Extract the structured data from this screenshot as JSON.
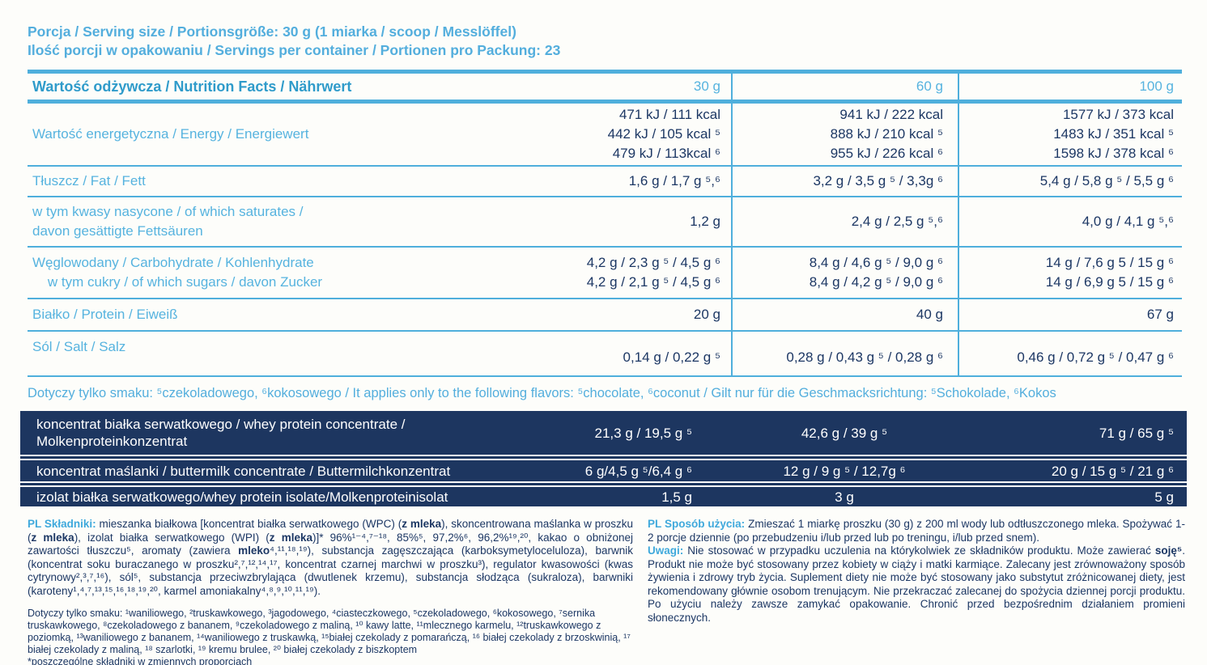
{
  "colors": {
    "accent_cyan": "#4fafdc",
    "title_blue": "#2f9bca",
    "navy_text": "#1c3764",
    "dark_band_bg": "#1d3660",
    "band_text": "#ffffff"
  },
  "serving": {
    "line1": "Porcja / Serving size / Portionsgröße: 30 g (1 miarka / scoop / Messlöffel)",
    "line2": "Ilość porcji w opakowaniu / Servings per container / Portionen pro Packung: 23"
  },
  "table": {
    "title": "Wartość odżywcza / Nutrition Facts / Nährwert",
    "columns": [
      "30 g",
      "60 g",
      "100 g"
    ],
    "rows": [
      {
        "label": "Wartość energetyczna / Energy / Energiewert",
        "v30": "471 kJ / 111 kcal\n442 kJ / 105 kcal ⁵\n479 kJ / 113kcal ⁶",
        "v60": "941 kJ / 222 kcal\n888 kJ / 210 kcal ⁵\n955 kJ / 226 kcal ⁶",
        "v100": "1577 kJ / 373 kcal\n1483 kJ / 351 kcal ⁵\n1598 kJ / 378 kcal ⁶"
      },
      {
        "label": "Tłuszcz / Fat / Fett",
        "v30": "1,6 g / 1,7 g ⁵,⁶",
        "v60": "3,2 g / 3,5 g ⁵ / 3,3g ⁶",
        "v100": "5,4 g / 5,8 g ⁵ / 5,5 g ⁶"
      },
      {
        "label": "w tym kwasy nasycone / of which saturates /\ndavon gesättigte Fettsäuren",
        "v30": "1,2 g",
        "v60": "2,4 g / 2,5 g ⁵,⁶",
        "v100": "4,0 g / 4,1 g ⁵,⁶"
      },
      {
        "label": "Węglowodany / Carbohydrate / Kohlenhydrate\n    w tym cukry / of which sugars / davon Zucker",
        "v30": "4,2 g / 2,3 g ⁵ / 4,5 g ⁶\n4,2 g / 2,1 g ⁵ / 4,5 g ⁶",
        "v60": "8,4 g / 4,6 g ⁵ / 9,0 g ⁶\n8,4 g / 4,2 g ⁵ / 9,0 g ⁶",
        "v100": "14 g / 7,6 g 5 / 15 g ⁶\n14 g / 6,9 g 5 / 15 g ⁶"
      },
      {
        "label": "Białko / Protein / Eiweiß",
        "v30": "20 g",
        "v60": "40 g",
        "v100": "67 g"
      },
      {
        "label": "Sól / Salt / Salz",
        "v30": "0,14 g / 0,22 g ⁵",
        "v60": "0,28 g / 0,43 g ⁵ / 0,28 g ⁶",
        "v100": "0,46 g / 0,72 g ⁵ / 0,47 g ⁶"
      }
    ]
  },
  "flavors_note": "Dotyczy tylko smaku: ⁵czekoladowego, ⁶kokosowego / It applies only to the following flavors: ⁵chocolate, ⁶coconut  / Gilt nur für die Geschmacksrichtung: ⁵Schokolade, ⁶Kokos",
  "protein_band": {
    "rows": [
      {
        "label": "koncentrat białka serwatkowego / whey protein concentrate /\nMolkenproteinkonzentrat",
        "v30": "21,3 g / 19,5 g ⁵",
        "v60": "42,6 g / 39 g ⁵",
        "v100": "71 g / 65 g ⁵"
      },
      {
        "label": "koncentrat maślanki / buttermilk concentrate / Buttermilchkonzentrat",
        "v30": "6 g/4,5 g ⁵/6,4 g ⁶",
        "v60": "12 g / 9 g ⁵ / 12,7g ⁶",
        "v100": "20 g / 15 g ⁵ / 21 g ⁶"
      },
      {
        "label": "izolat białka serwatkowego/whey protein isolate/Molkenproteinisolat",
        "v30": "1,5 g",
        "v60": "3 g",
        "v100": "5 g"
      }
    ]
  },
  "footer": {
    "ingredients_label": "PL Składniki:",
    "ingredients_text": " mieszanka białkowa [koncentrat białka serwatkowego (WPC) (**z mleka**), skoncentrowana maślanka w proszku (**z mleka**), izolat białka serwatkowego (WPI) (**z mleka**)]* 96%¹⁻⁴,⁷⁻¹⁸, 85%⁵, 97,2%⁶, 96,2%¹⁹,²⁰, kakao o obniżonej zawartości tłuszczu⁵, aromaty (zawiera **mleko**⁴,¹¹,¹⁸,¹⁹), substancja zagęszczająca (karboksymetyloceluloza), barwnik (koncentrat soku buraczanego w proszku²,⁷,¹²,¹⁴,¹⁷, koncentrat czarnej marchwi w proszku³), regulator kwasowości (kwas cytrynowy²,³,⁷,¹⁶), sól⁵, substancja przeciwzbrylająca (dwutlenek krzemu), substancja słodząca (sukraloza), barwniki (karoteny¹,⁴,⁷,¹³,¹⁵,¹⁶,¹⁸,¹⁹,²⁰, karmel amoniakalny⁴,⁸,⁹,¹⁰,¹¹,¹⁹).",
    "flavors_footnote": "Dotyczy tylko smaku: ¹waniliowego, ²truskawkowego, ³jagodowego, ⁴ciasteczkowego, ⁵czekoladowego, ⁶kokosowego, ⁷sernika truskawkowego, ⁸czekoladowego z bananem, ⁹czekoladowego z maliną, ¹⁰ kawy latte, ¹¹mlecznego karmelu, ¹²truskawkowego z poziomką, ¹³waniliowego z bananem, ¹⁴waniliowego z truskawką, ¹⁵białej czekolady z pomarańczą, ¹⁶ białej czekolady z brzoskwinią, ¹⁷ białej czekolady z maliną, ¹⁸ szarlotki, ¹⁹ kremu brulee, ²⁰ białej czekolady z biszkoptem",
    "proportions_note": "*poszczególne składniki w zmiennych proporcjach",
    "usage_label": "PL Sposób użycia:",
    "usage_text": " Zmieszać 1 miarkę proszku (30 g) z 200 ml wody lub odtłuszczonego mleka. Spożywać 1-2 porcje dziennie (po przebudzeniu i/lub przed lub po treningu, i/lub przed snem).",
    "remarks_label": "Uwagi:",
    "remarks_text": " Nie stosować w przypadku uczulenia na którykolwiek ze składników produktu. Może zawierać **soję⁵**. Produkt nie może być stosowany przez kobiety w ciąży i matki karmiące. Zalecany jest zrównoważony sposób żywienia i zdrowy tryb życia. Suplement diety nie może być stosowany jako substytut zróżnicowanej diety, jest rekomendowany głównie osobom trenującym. Nie przekraczać zalecanej do spożycia dziennej porcji produktu.  Po użyciu należy zawsze zamykać opakowanie. Chronić przed bezpośrednim działaniem promieni słonecznych."
  }
}
